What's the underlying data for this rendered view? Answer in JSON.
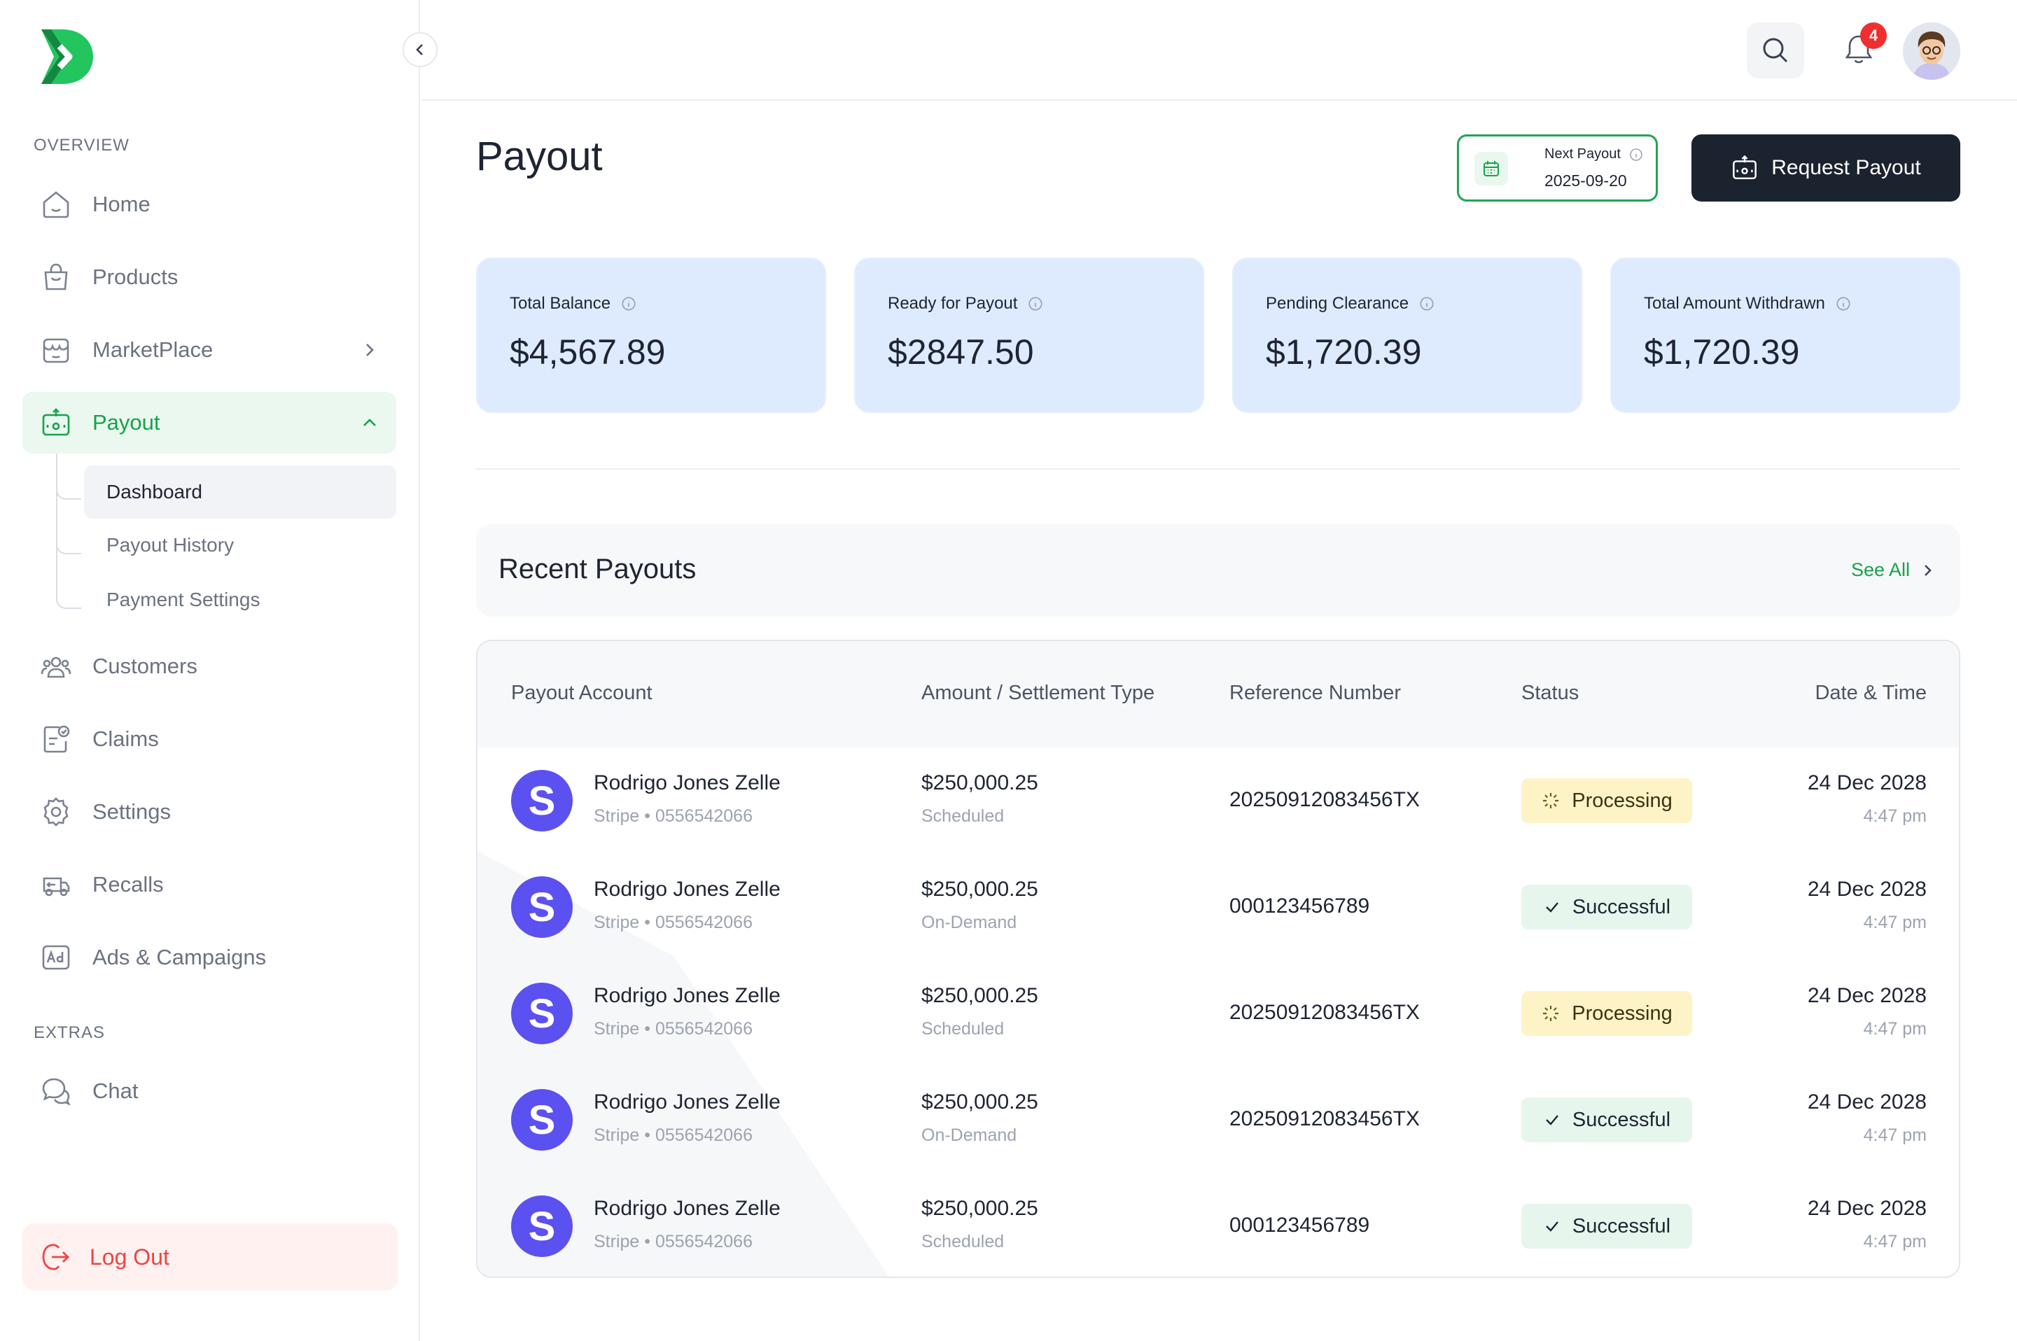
{
  "sidebar": {
    "sections": {
      "overview": "OVERVIEW",
      "extras": "EXTRAS"
    },
    "items": [
      {
        "label": "Home",
        "icon": "home-icon"
      },
      {
        "label": "Products",
        "icon": "shopping-bag-icon"
      },
      {
        "label": "MarketPlace",
        "icon": "store-icon"
      },
      {
        "label": "Payout",
        "icon": "payout-icon"
      },
      {
        "label": "Customers",
        "icon": "users-icon"
      },
      {
        "label": "Claims",
        "icon": "claims-icon"
      },
      {
        "label": "Settings",
        "icon": "gear-icon"
      },
      {
        "label": "Recalls",
        "icon": "recall-icon"
      },
      {
        "label": "Ads & Campaigns",
        "icon": "ad-icon"
      }
    ],
    "extras": [
      {
        "label": "Chat",
        "icon": "chat-icon"
      }
    ],
    "payout_sub": [
      {
        "label": "Dashboard"
      },
      {
        "label": "Payout History"
      },
      {
        "label": "Payment Settings"
      }
    ],
    "logout": "Log Out",
    "accent": "#16a34a"
  },
  "header": {
    "notification_count": "4"
  },
  "main": {
    "title": "Payout",
    "next_payout": {
      "label": "Next Payout",
      "date": "2025-09-20"
    },
    "request_button": "Request Payout",
    "stats": [
      {
        "label": "Total Balance",
        "value": "$4,567.89"
      },
      {
        "label": "Ready for Payout",
        "value": "$2847.50"
      },
      {
        "label": "Pending Clearance",
        "value": "$1,720.39"
      },
      {
        "label": "Total Amount Withdrawn",
        "value": "$1,720.39"
      }
    ],
    "recent": {
      "title": "Recent Payouts",
      "see_all": "See All"
    },
    "table": {
      "headers": [
        "Payout Account",
        "Amount / Settlement Type",
        "Reference Number",
        "Status",
        "Date & Time"
      ],
      "rows": [
        {
          "logo": "S",
          "name": "Rodrigo Jones Zelle",
          "sub": "Stripe • 0556542066",
          "amount": "$250,000.25",
          "type": "Scheduled",
          "ref": "20250912083456TX",
          "status": "Processing",
          "date": "24 Dec 2028",
          "time": "4:47 pm"
        },
        {
          "logo": "S",
          "name": "Rodrigo Jones Zelle",
          "sub": "Stripe • 0556542066",
          "amount": "$250,000.25",
          "type": "On-Demand",
          "ref": "000123456789",
          "status": "Successful",
          "date": "24 Dec 2028",
          "time": "4:47 pm"
        },
        {
          "logo": "S",
          "name": "Rodrigo Jones Zelle",
          "sub": "Stripe • 0556542066",
          "amount": "$250,000.25",
          "type": "Scheduled",
          "ref": "20250912083456TX",
          "status": "Processing",
          "date": "24 Dec 2028",
          "time": "4:47 pm"
        },
        {
          "logo": "S",
          "name": "Rodrigo Jones Zelle",
          "sub": "Stripe • 0556542066",
          "amount": "$250,000.25",
          "type": "On-Demand",
          "ref": "20250912083456TX",
          "status": "Successful",
          "date": "24 Dec 2028",
          "time": "4:47 pm"
        },
        {
          "logo": "S",
          "name": "Rodrigo Jones Zelle",
          "sub": "Stripe • 0556542066",
          "amount": "$250,000.25",
          "type": "Scheduled",
          "ref": "000123456789",
          "status": "Successful",
          "date": "24 Dec 2028",
          "time": "4:47 pm"
        }
      ]
    }
  }
}
